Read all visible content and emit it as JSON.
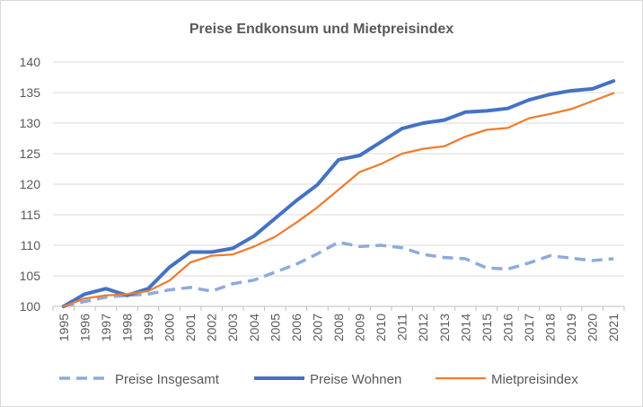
{
  "chart_data": {
    "type": "line",
    "title": "Preise Endkonsum und Mietpreisindex",
    "xlabel": "",
    "ylabel": "",
    "ylim": [
      100,
      140
    ],
    "yticks": [
      100,
      105,
      110,
      115,
      120,
      125,
      130,
      135,
      140
    ],
    "grid": true,
    "legend_position": "bottom",
    "categories": [
      "1995",
      "1996",
      "1997",
      "1998",
      "1999",
      "2000",
      "2001",
      "2002",
      "2003",
      "2004",
      "2005",
      "2006",
      "2007",
      "2008",
      "2009",
      "2010",
      "2011",
      "2012",
      "2013",
      "2014",
      "2015",
      "2016",
      "2017",
      "2018",
      "2019",
      "2020",
      "2021"
    ],
    "series": [
      {
        "name": "Preise Insgesamt",
        "color": "#8faadc",
        "dash": true,
        "values": [
          100,
          100.8,
          101.5,
          101.8,
          102.0,
          102.7,
          103.1,
          102.5,
          103.7,
          104.3,
          105.6,
          106.9,
          108.6,
          110.5,
          109.8,
          110.0,
          109.6,
          108.5,
          108.0,
          107.8,
          106.3,
          106.1,
          107.1,
          108.3,
          107.9,
          107.5,
          107.8
        ]
      },
      {
        "name": "Preise Wohnen",
        "color": "#4472c4",
        "dash": false,
        "values": [
          100,
          102.0,
          102.9,
          101.8,
          102.9,
          106.4,
          108.9,
          108.9,
          109.5,
          111.5,
          114.4,
          117.3,
          119.9,
          124.0,
          124.7,
          126.9,
          129.1,
          130.0,
          130.5,
          131.8,
          132.0,
          132.4,
          133.8,
          134.7,
          135.3,
          135.6,
          136.9
        ]
      },
      {
        "name": "Mietpreisindex",
        "color": "#ed7d31",
        "dash": false,
        "values": [
          100,
          101.3,
          101.8,
          102.0,
          102.5,
          104.2,
          107.2,
          108.3,
          108.5,
          109.8,
          111.4,
          113.7,
          116.2,
          119.1,
          122.0,
          123.3,
          125.0,
          125.8,
          126.2,
          127.8,
          128.9,
          129.2,
          130.8,
          131.5,
          132.3,
          133.6,
          134.9
        ]
      }
    ]
  }
}
